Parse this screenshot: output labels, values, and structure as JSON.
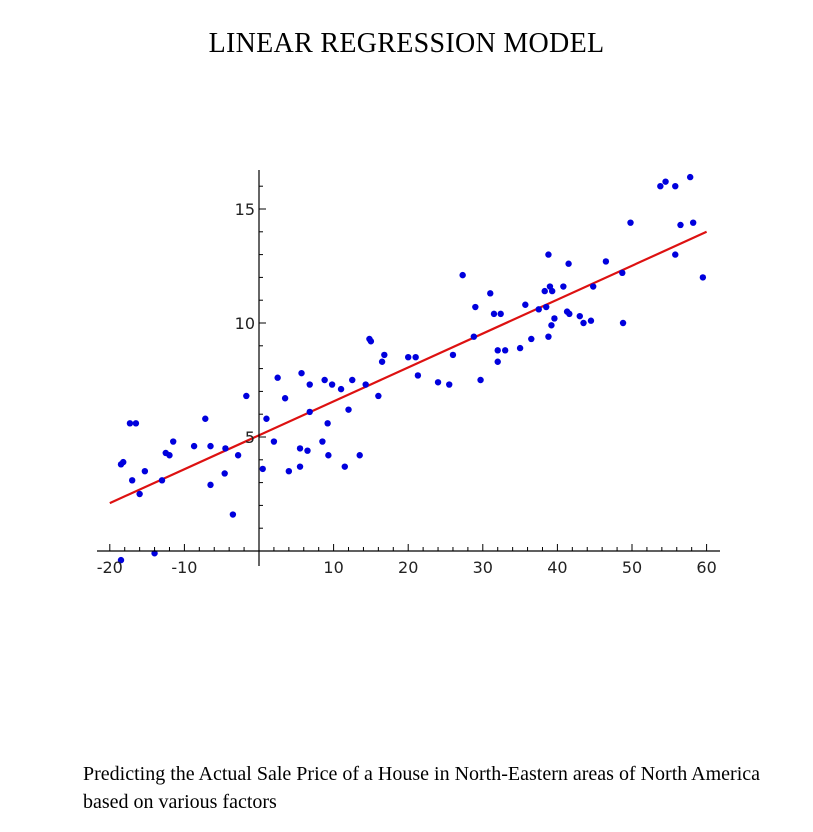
{
  "title": "LINEAR REGRESSION MODEL",
  "caption": "Predicting the Actual Sale Price of a House in North-Eastern areas of North America based on various factors",
  "chart_data": {
    "type": "scatter",
    "xlabel": "",
    "ylabel": "",
    "xlim": [
      -20,
      60
    ],
    "ylim": [
      0,
      16.7
    ],
    "x_ticks": [
      -20,
      -10,
      10,
      20,
      30,
      40,
      50,
      60
    ],
    "x_tick_labels": [
      "-20",
      "-10",
      "10",
      "20",
      "30",
      "40",
      "50",
      "60"
    ],
    "y_ticks": [
      5,
      10,
      15
    ],
    "y_tick_labels": [
      "5",
      "10",
      "15"
    ],
    "grid": false,
    "colors": {
      "points": "#0000dd",
      "fit_line": "#dd1111",
      "axis": "#000000"
    },
    "fit_line": {
      "x": [
        -20,
        60
      ],
      "y": [
        2.1,
        14.0
      ]
    },
    "points": [
      {
        "x": -18.5,
        "y": 3.8
      },
      {
        "x": -18.2,
        "y": 3.9
      },
      {
        "x": -17.3,
        "y": 5.6
      },
      {
        "x": -16.5,
        "y": 5.6
      },
      {
        "x": -17.0,
        "y": 3.1
      },
      {
        "x": -15.3,
        "y": 3.5
      },
      {
        "x": -16.0,
        "y": 2.5
      },
      {
        "x": -13.0,
        "y": 3.1
      },
      {
        "x": -12.0,
        "y": 4.2
      },
      {
        "x": -11.5,
        "y": 4.8
      },
      {
        "x": -12.5,
        "y": 4.3
      },
      {
        "x": -8.7,
        "y": 4.6
      },
      {
        "x": -7.2,
        "y": 5.8
      },
      {
        "x": -6.5,
        "y": 4.6
      },
      {
        "x": -6.5,
        "y": 2.9
      },
      {
        "x": -4.6,
        "y": 3.4
      },
      {
        "x": -4.5,
        "y": 4.5
      },
      {
        "x": -3.5,
        "y": 1.6
      },
      {
        "x": -2.8,
        "y": 4.2
      },
      {
        "x": -1.7,
        "y": 6.8
      },
      {
        "x": 0.5,
        "y": 3.6
      },
      {
        "x": 1.0,
        "y": 5.8
      },
      {
        "x": 2.0,
        "y": 4.8
      },
      {
        "x": 2.5,
        "y": 7.6
      },
      {
        "x": 3.5,
        "y": 6.7
      },
      {
        "x": 4.0,
        "y": 3.5
      },
      {
        "x": 5.5,
        "y": 4.5
      },
      {
        "x": 5.5,
        "y": 3.7
      },
      {
        "x": 5.7,
        "y": 7.8
      },
      {
        "x": 6.5,
        "y": 4.4
      },
      {
        "x": 6.8,
        "y": 6.1
      },
      {
        "x": 6.8,
        "y": 7.3
      },
      {
        "x": 8.5,
        "y": 4.8
      },
      {
        "x": 8.8,
        "y": 7.5
      },
      {
        "x": 9.2,
        "y": 5.6
      },
      {
        "x": 9.3,
        "y": 4.2
      },
      {
        "x": 9.8,
        "y": 7.3
      },
      {
        "x": 11.0,
        "y": 7.1
      },
      {
        "x": 11.5,
        "y": 3.7
      },
      {
        "x": 12.0,
        "y": 6.2
      },
      {
        "x": 12.5,
        "y": 7.5
      },
      {
        "x": 13.5,
        "y": 4.2
      },
      {
        "x": 14.3,
        "y": 7.3
      },
      {
        "x": 14.8,
        "y": 9.3
      },
      {
        "x": 15.0,
        "y": 9.2
      },
      {
        "x": 16.0,
        "y": 6.8
      },
      {
        "x": 16.5,
        "y": 8.3
      },
      {
        "x": 16.8,
        "y": 8.6
      },
      {
        "x": 20.0,
        "y": 8.5
      },
      {
        "x": 21.0,
        "y": 8.5
      },
      {
        "x": 21.3,
        "y": 7.7
      },
      {
        "x": 24.0,
        "y": 7.4
      },
      {
        "x": 25.5,
        "y": 7.3
      },
      {
        "x": 26.0,
        "y": 8.6
      },
      {
        "x": 27.3,
        "y": 12.1
      },
      {
        "x": 28.8,
        "y": 9.4
      },
      {
        "x": 29.0,
        "y": 10.7
      },
      {
        "x": 29.7,
        "y": 7.5
      },
      {
        "x": 31.0,
        "y": 11.3
      },
      {
        "x": 31.5,
        "y": 10.4
      },
      {
        "x": 32.0,
        "y": 8.8
      },
      {
        "x": 32.0,
        "y": 8.3
      },
      {
        "x": 32.4,
        "y": 10.4
      },
      {
        "x": 33.0,
        "y": 8.8
      },
      {
        "x": 35.0,
        "y": 8.9
      },
      {
        "x": 35.7,
        "y": 10.8
      },
      {
        "x": 36.5,
        "y": 9.3
      },
      {
        "x": 37.5,
        "y": 10.6
      },
      {
        "x": 38.3,
        "y": 11.4
      },
      {
        "x": 38.5,
        "y": 10.7
      },
      {
        "x": 38.8,
        "y": 13.0
      },
      {
        "x": 38.8,
        "y": 9.4
      },
      {
        "x": 39.0,
        "y": 11.6
      },
      {
        "x": 39.2,
        "y": 9.9
      },
      {
        "x": 39.3,
        "y": 11.4
      },
      {
        "x": 39.6,
        "y": 10.2
      },
      {
        "x": 40.8,
        "y": 11.6
      },
      {
        "x": 41.3,
        "y": 10.5
      },
      {
        "x": 41.6,
        "y": 10.4
      },
      {
        "x": 41.5,
        "y": 12.6
      },
      {
        "x": 43.0,
        "y": 10.3
      },
      {
        "x": 43.5,
        "y": 10.0
      },
      {
        "x": 44.5,
        "y": 10.1
      },
      {
        "x": 44.8,
        "y": 11.6
      },
      {
        "x": 46.5,
        "y": 12.7
      },
      {
        "x": 48.7,
        "y": 12.2
      },
      {
        "x": 48.8,
        "y": 10.0
      },
      {
        "x": 49.8,
        "y": 14.4
      },
      {
        "x": 53.8,
        "y": 16.0
      },
      {
        "x": 54.5,
        "y": 16.2
      },
      {
        "x": 55.8,
        "y": 16.0
      },
      {
        "x": 55.8,
        "y": 13.0
      },
      {
        "x": 56.5,
        "y": 14.3
      },
      {
        "x": 57.8,
        "y": 16.4
      },
      {
        "x": 58.2,
        "y": 14.4
      },
      {
        "x": 59.5,
        "y": 12.0
      },
      {
        "x": -18.5,
        "y": -0.4
      },
      {
        "x": -14.0,
        "y": -0.1
      }
    ]
  }
}
